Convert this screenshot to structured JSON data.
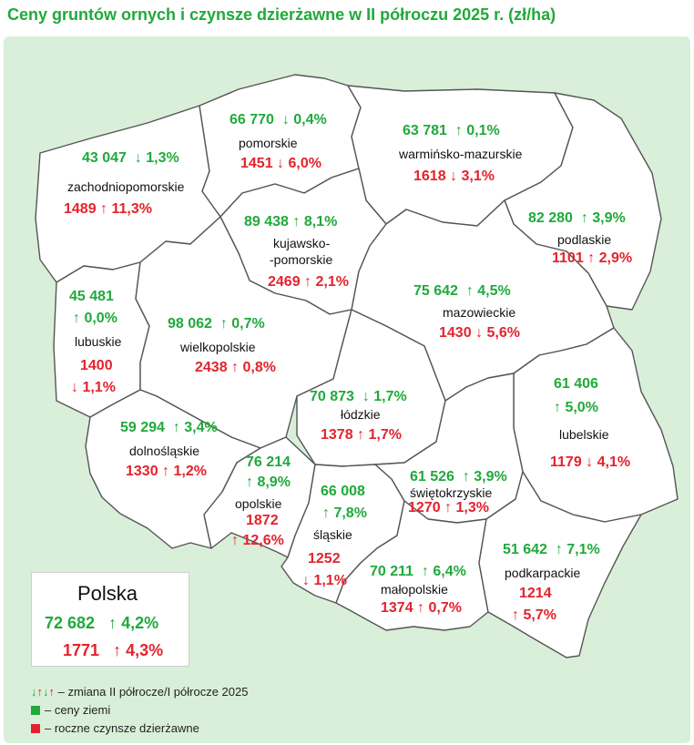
{
  "title": "Ceny gruntów ornych i czynsze dzierżawne w II półroczu 2025 r. (zł/ha)",
  "colors": {
    "green": "#1faa3a",
    "red": "#e3232c",
    "panel": "#d9efd9",
    "title": "#1faa3a"
  },
  "regions": [
    {
      "id": "zachodniopomorskie",
      "name": "zachodniopomorskie",
      "price": "43 047",
      "price_change": "↓ 1,3%",
      "rent": "1489",
      "rent_change": "↑ 11,3%"
    },
    {
      "id": "pomorskie",
      "name": "pomorskie",
      "price": "66 770",
      "price_change": "↓ 0,4%",
      "rent": "1451",
      "rent_change": "↓ 6,0%"
    },
    {
      "id": "warminsko-mazurskie",
      "name": "warmińsko-mazurskie",
      "price": "63 781",
      "price_change": "↑ 0,1%",
      "rent": "1618",
      "rent_change": "↓ 3,1%"
    },
    {
      "id": "podlaskie",
      "name": "podlaskie",
      "price": "82 280",
      "price_change": "↑ 3,9%",
      "rent": "1101",
      "rent_change": "↑ 2,9%"
    },
    {
      "id": "kujawsko-pomorskie",
      "name_line1": "kujawsko-",
      "name_line2": "-pomorskie",
      "price": "89 438",
      "price_change": "↑ 8,1%",
      "rent": "2469",
      "rent_change": "↑ 2,1%"
    },
    {
      "id": "lubuskie",
      "name": "lubuskie",
      "price": "45 481",
      "price_change": "↑ 0,0%",
      "rent": "1400",
      "rent_change": "↓ 1,1%"
    },
    {
      "id": "wielkopolskie",
      "name": "wielkopolskie",
      "price": "98 062",
      "price_change": "↑ 0,7%",
      "rent": "2438",
      "rent_change": "↑ 0,8%"
    },
    {
      "id": "mazowieckie",
      "name": "mazowieckie",
      "price": "75 642",
      "price_change": "↑ 4,5%",
      "rent": "1430",
      "rent_change": "↓ 5,6%"
    },
    {
      "id": "lodzkie",
      "name": "łódzkie",
      "price": "70 873",
      "price_change": "↓ 1,7%",
      "rent": "1378",
      "rent_change": "↑ 1,7%"
    },
    {
      "id": "lubelskie",
      "name": "lubelskie",
      "price": "61 406",
      "price_change": "↑ 5,0%",
      "rent": "1179",
      "rent_change": "↓ 4,1%"
    },
    {
      "id": "dolnoslaskie",
      "name": "dolnośląskie",
      "price": "59 294",
      "price_change": "↑ 3,4%",
      "rent": "1330",
      "rent_change": "↑ 1,2%"
    },
    {
      "id": "opolskie",
      "name": "opolskie",
      "price": "76 214",
      "price_change": "↑ 8,9%",
      "rent": "1872",
      "rent_change": "↑ 12,6%"
    },
    {
      "id": "slaskie",
      "name": "śląskie",
      "price": "66 008",
      "price_change": "↑ 7,8%",
      "rent": "1252",
      "rent_change": "↓ 1,1%"
    },
    {
      "id": "swietokrzyskie",
      "name": "świętokrzyskie",
      "price": "61 526",
      "price_change": "↑ 3,9%",
      "rent": "1270",
      "rent_change": "↑ 1,3%"
    },
    {
      "id": "malopolskie",
      "name": "małopolskie",
      "price": "70 211",
      "price_change": "↑ 6,4%",
      "rent": "1374",
      "rent_change": "↑ 0,7%"
    },
    {
      "id": "podkarpackie",
      "name": "podkarpackie",
      "price": "51 642",
      "price_change": "↑ 7,1%",
      "rent": "1214",
      "rent_change": "↑ 5,7%"
    }
  ],
  "poland": {
    "name": "Polska",
    "price": "72 682",
    "price_change": "↑ 4,2%",
    "rent": "1771",
    "rent_change": "↑ 4,3%"
  },
  "legend": {
    "arrows": "↓↑↓↑",
    "arrows_text": "– zmiana II półrocze/I półrocze 2025",
    "green_text": "– ceny ziemi",
    "red_text": "– roczne czynsze dzierżawne"
  }
}
